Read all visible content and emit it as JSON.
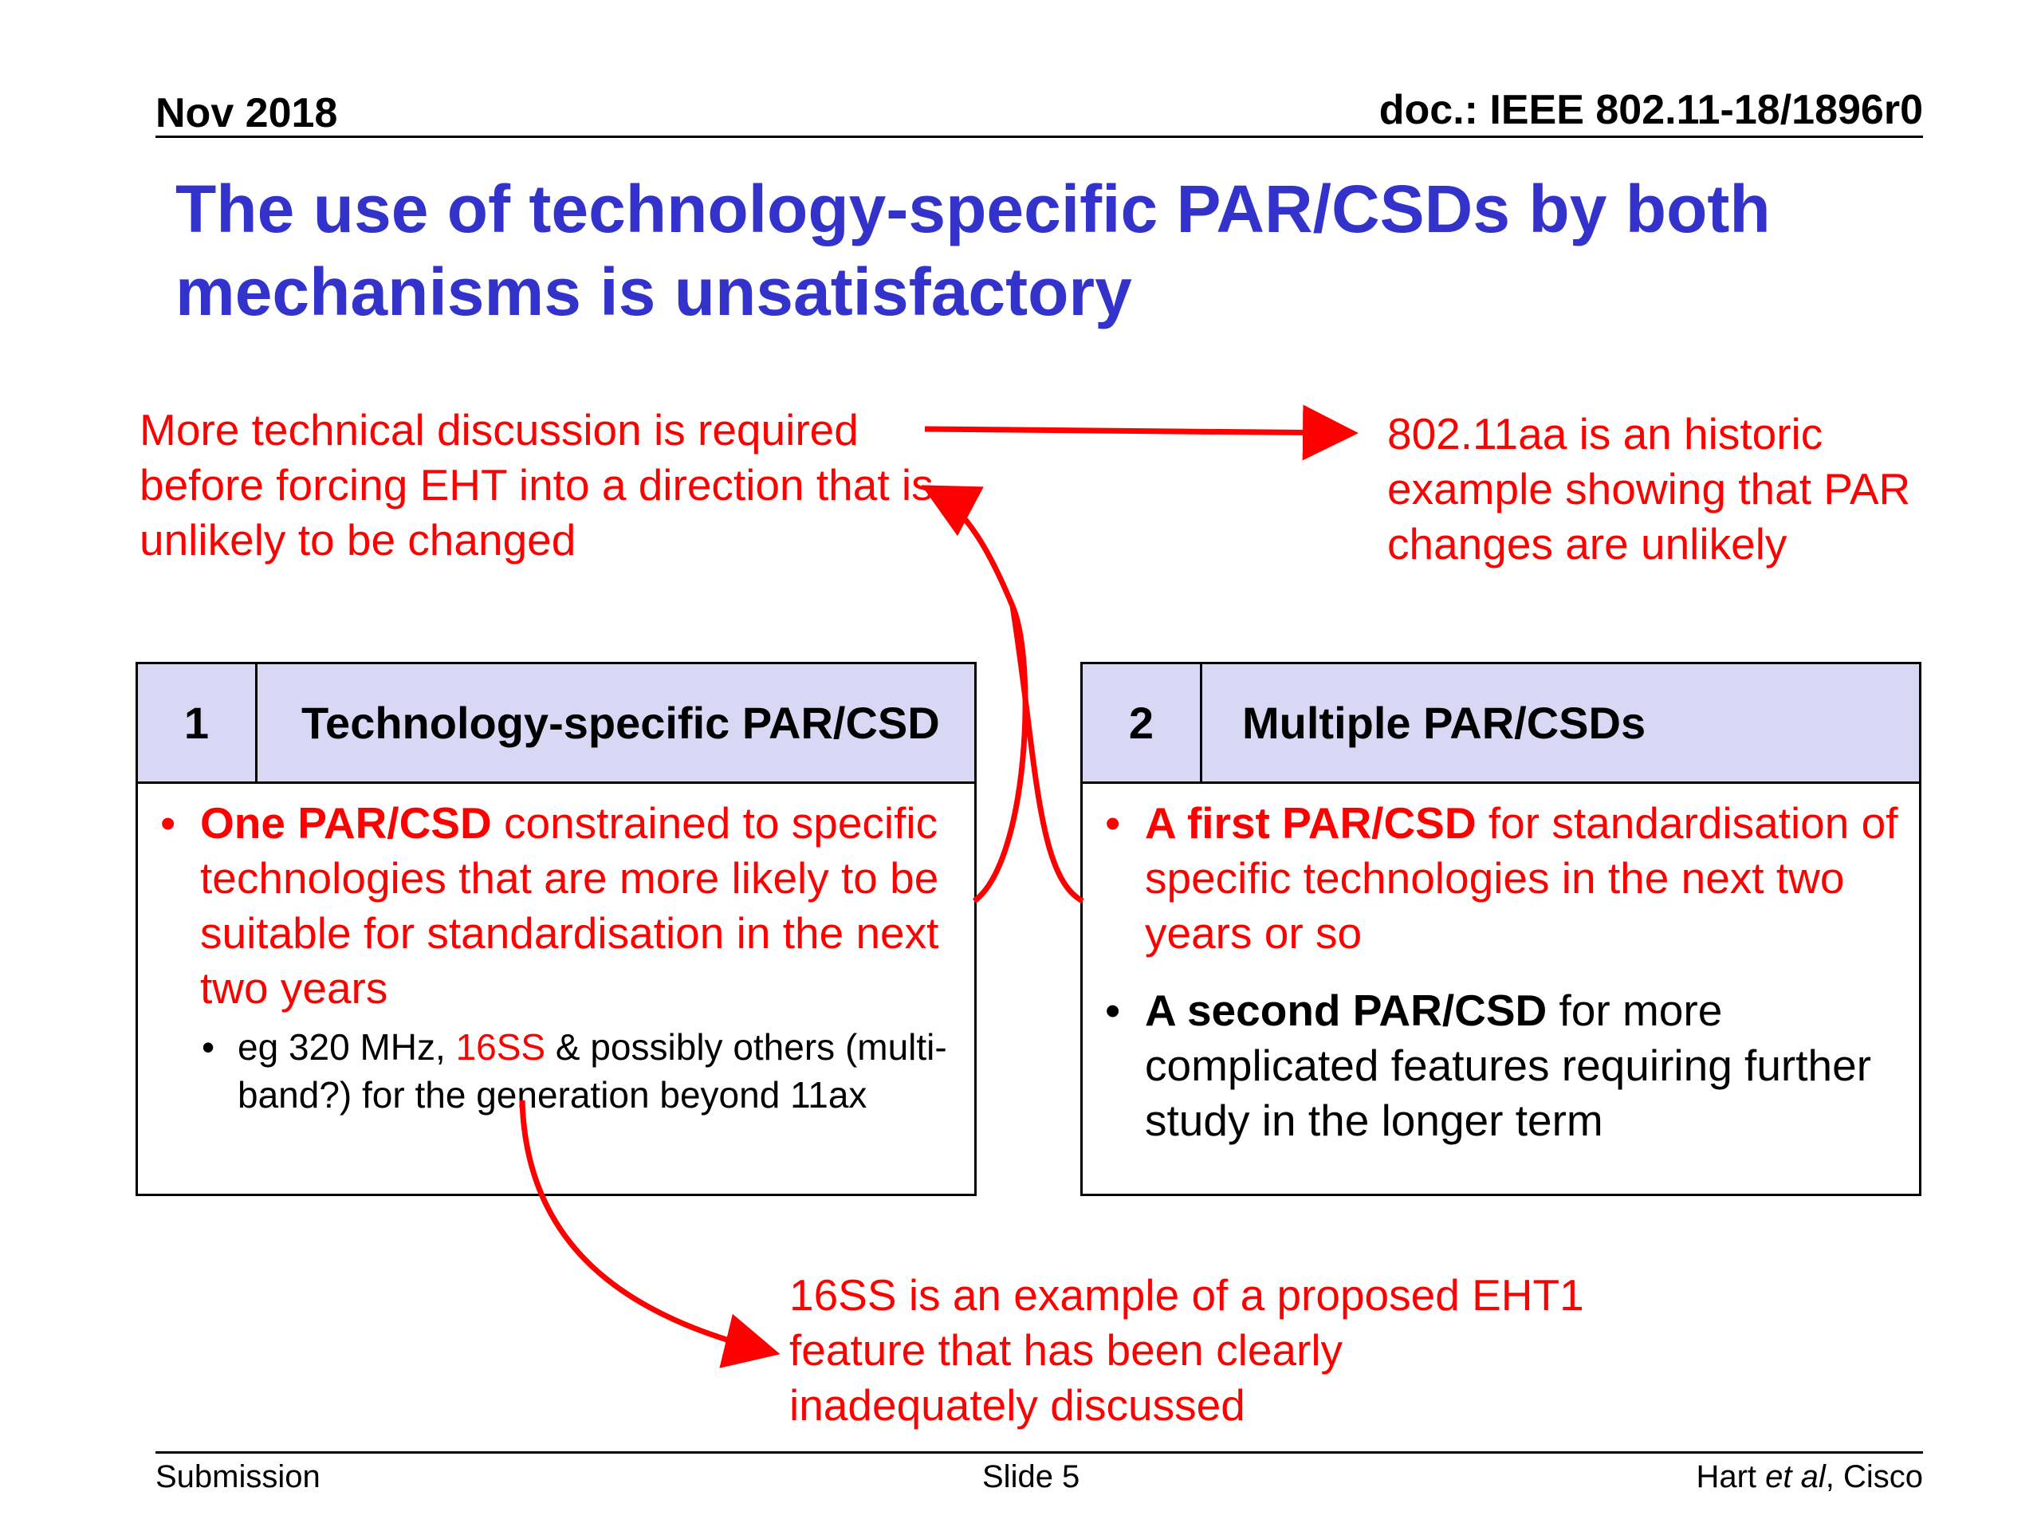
{
  "header": {
    "date": "Nov 2018",
    "doc_id": "doc.: IEEE 802.11-18/1896r0"
  },
  "title": "The use of technology-specific PAR/CSDs by both mechanisms is unsatisfactory",
  "notes": {
    "top_left": "More technical discussion is required before forcing  EHT into a direction that is unlikely to be changed",
    "top_right": "802.11aa is an historic example showing that PAR changes are unlikely",
    "bottom": "16SS is an example of a proposed EHT1 feature that has been clearly inadequately discussed"
  },
  "box1": {
    "number": "1",
    "heading": "Technology-specific PAR/CSD",
    "bullet_bold": "One PAR/CSD",
    "bullet_rest": " constrained to specific technologies that are more likely to be suitable for standardisation in the next two years",
    "sub_prefix": "eg 320 MHz, ",
    "sub_highlight": "16SS",
    "sub_rest": " & possibly others (multi-band?) for the generation beyond 11ax"
  },
  "box2": {
    "number": "2",
    "heading": "Multiple PAR/CSDs",
    "bullet1_bold": "A first PAR/CSD",
    "bullet1_rest": " for standardisation of specific technologies in the next two years or so",
    "bullet2_bold": "A second PAR/CSD",
    "bullet2_rest": " for more complicated features requiring further study in the longer term"
  },
  "footer": {
    "left": "Submission",
    "center": "Slide 5",
    "right_name": "Hart ",
    "right_italic": "et al",
    "right_org": ", Cisco"
  },
  "colors": {
    "title": "#3333cc",
    "accent_red": "#ff0000",
    "box_header_fill": "#d8d8f5"
  },
  "bullet_glyph": "•"
}
